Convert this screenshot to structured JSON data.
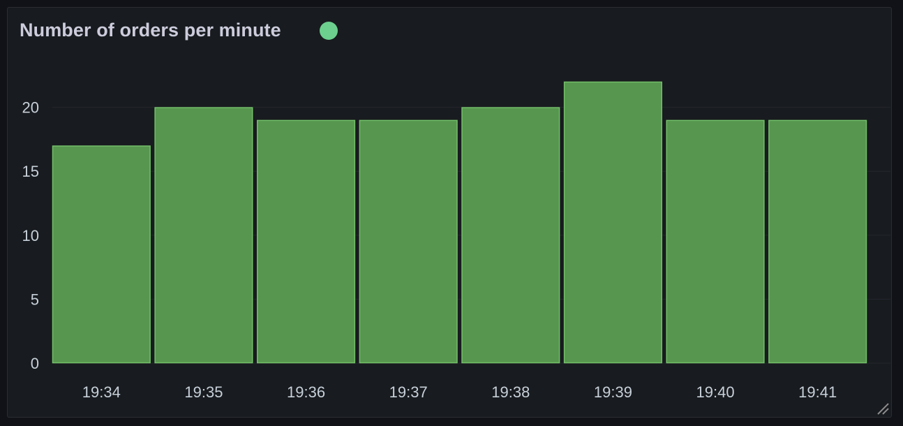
{
  "panel": {
    "title": "Number of orders per minute",
    "status_color": "#6ccf8e"
  },
  "chart_data": {
    "type": "bar",
    "title": "Number of orders per minute",
    "categories": [
      "19:34",
      "19:35",
      "19:36",
      "19:37",
      "19:38",
      "19:39",
      "19:40",
      "19:41"
    ],
    "values": [
      17,
      20,
      19,
      19,
      20,
      22,
      19,
      19
    ],
    "yticks": [
      "0",
      "5",
      "10",
      "15",
      "20"
    ],
    "ylim": [
      0,
      22
    ],
    "xlabel": "",
    "ylabel": "",
    "grid": true,
    "bar_fill": "#56964e",
    "bar_stroke": "#73bf69"
  }
}
